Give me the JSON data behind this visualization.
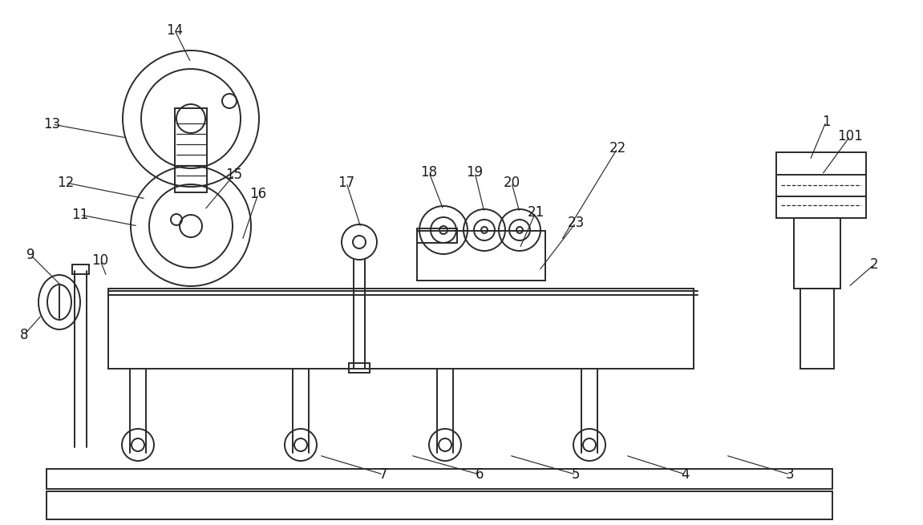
{
  "bg_color": "#ffffff",
  "line_color": "#2a2a2a",
  "label_color": "#1a1a1a",
  "figsize": [
    11.51,
    6.55
  ],
  "dpi": 100
}
